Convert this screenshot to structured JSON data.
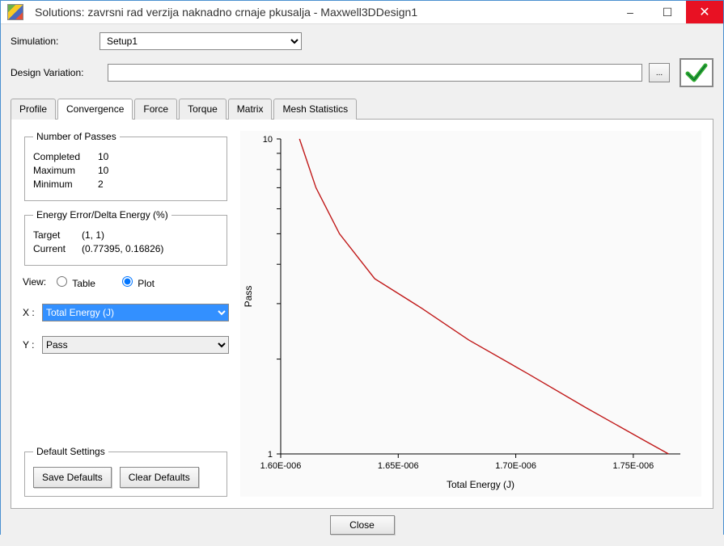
{
  "window": {
    "title": "Solutions: zavrsni rad verzija naknadno crnaje pkusalja - Maxwell3DDesign1",
    "min": "–",
    "max": "☐",
    "close": "✕"
  },
  "form": {
    "simulation_label": "Simulation:",
    "simulation_value": "Setup1",
    "design_variation_label": "Design Variation:",
    "design_variation_value": "",
    "ellipsis": "..."
  },
  "tabs": {
    "profile": "Profile",
    "convergence": "Convergence",
    "force": "Force",
    "torque": "Torque",
    "matrix": "Matrix",
    "mesh": "Mesh Statistics"
  },
  "passes": {
    "legend": "Number of Passes",
    "completed_label": "Completed",
    "completed_value": "10",
    "maximum_label": "Maximum",
    "maximum_value": "10",
    "minimum_label": "Minimum",
    "minimum_value": "2"
  },
  "energy": {
    "legend": "Energy Error/Delta Energy (%)",
    "target_label": "Target",
    "target_value": "(1, 1)",
    "current_label": "Current",
    "current_value": "(0.77395, 0.16826)"
  },
  "view": {
    "label": "View:",
    "table": "Table",
    "plot": "Plot",
    "selected": "plot",
    "x_label": "X :",
    "x_value": "Total Energy (J)",
    "y_label": "Y :",
    "y_value": "Pass"
  },
  "defaults": {
    "legend": "Default Settings",
    "save": "Save Defaults",
    "clear": "Clear Defaults"
  },
  "footer": {
    "close": "Close"
  },
  "chart": {
    "type": "line",
    "xlabel": "Total Energy (J)",
    "ylabel": "Pass",
    "line_color": "#c01818",
    "axis_color": "#000000",
    "background_color": "#fafafa",
    "xlim": [
      1.6e-06,
      1.77e-06
    ],
    "ylim": [
      1,
      10
    ],
    "yscale": "log",
    "xticks": [
      {
        "value": 1.6e-06,
        "label": "1.60E-006"
      },
      {
        "value": 1.65e-06,
        "label": "1.65E-006"
      },
      {
        "value": 1.7e-06,
        "label": "1.70E-006"
      },
      {
        "value": 1.75e-06,
        "label": "1.75E-006"
      }
    ],
    "ytick_labels": {
      "bottom": "1",
      "top": "10"
    },
    "points": [
      {
        "x": 1.608e-06,
        "y": 10.0
      },
      {
        "x": 1.615e-06,
        "y": 7.0
      },
      {
        "x": 1.625e-06,
        "y": 5.0
      },
      {
        "x": 1.64e-06,
        "y": 3.6
      },
      {
        "x": 1.66e-06,
        "y": 2.9
      },
      {
        "x": 1.68e-06,
        "y": 2.3
      },
      {
        "x": 1.705e-06,
        "y": 1.8
      },
      {
        "x": 1.73e-06,
        "y": 1.4
      },
      {
        "x": 1.755e-06,
        "y": 1.1
      },
      {
        "x": 1.765e-06,
        "y": 1.0
      }
    ],
    "title_fontsize": 12,
    "label_fontsize": 12,
    "tick_fontsize": 11
  }
}
